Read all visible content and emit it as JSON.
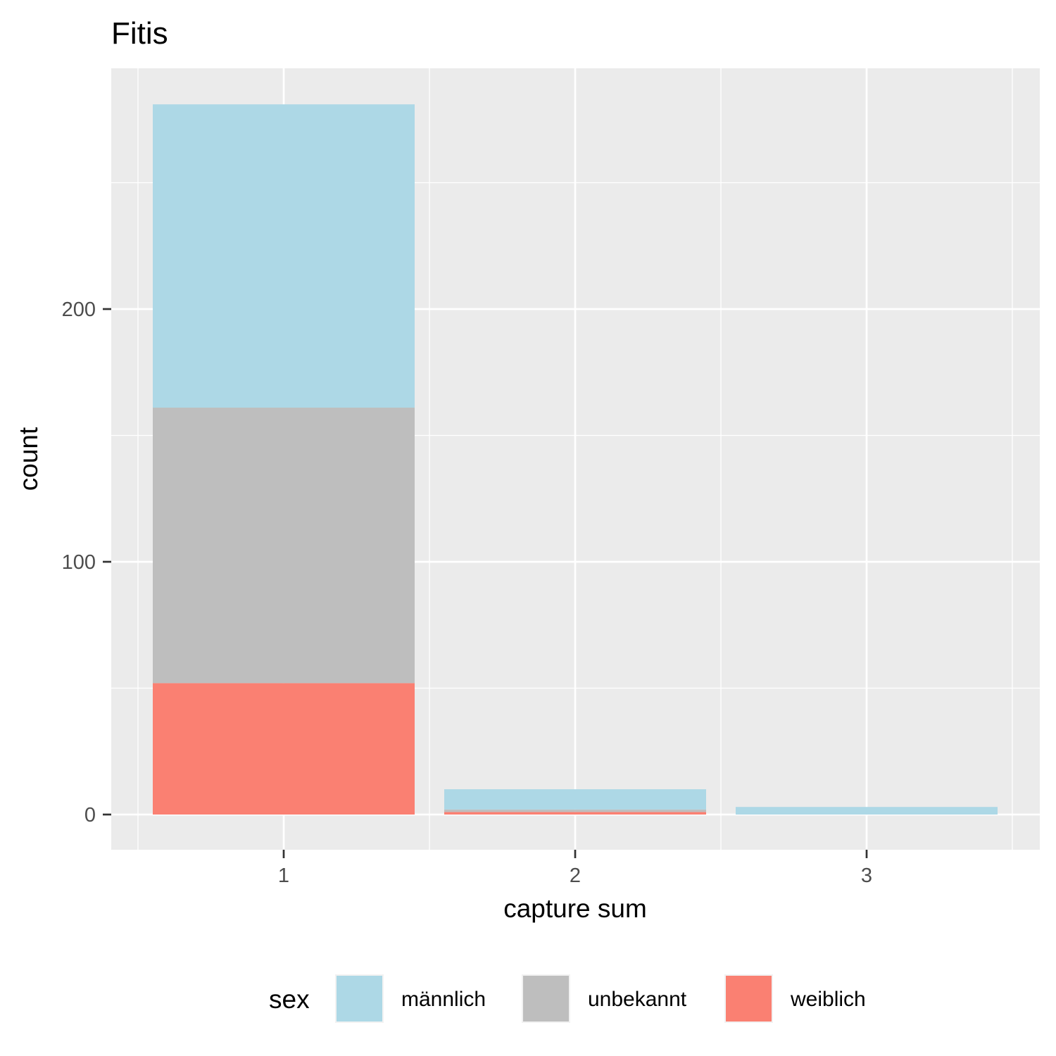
{
  "chart_data": {
    "type": "bar",
    "stacked": true,
    "title": "Fitis",
    "xlabel": "capture sum",
    "ylabel": "count",
    "categories": [
      "1",
      "2",
      "3"
    ],
    "ylim": [
      -14,
      295
    ],
    "yticks": [
      0,
      100,
      200
    ],
    "grid": true,
    "legend": {
      "title": "sex",
      "position": "bottom"
    },
    "series": [
      {
        "name": "weiblich",
        "color": "#FA8072",
        "values": [
          52,
          1,
          0
        ]
      },
      {
        "name": "unbekannt",
        "color": "#BEBEBE",
        "values": [
          109,
          1,
          0
        ]
      },
      {
        "name": "männlich",
        "color": "#ADD8E6",
        "values": [
          120,
          8,
          3
        ]
      }
    ],
    "legend_order": [
      "männlich",
      "unbekannt",
      "weiblich"
    ],
    "panel_background": "#EBEBEB",
    "grid_color": "#FFFFFF"
  }
}
